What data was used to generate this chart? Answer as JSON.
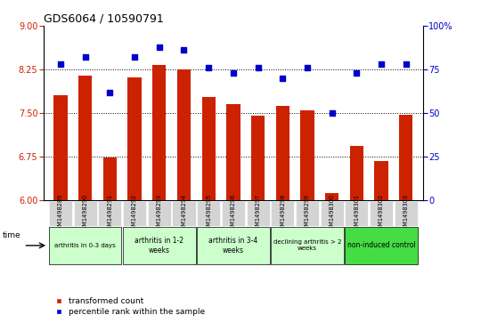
{
  "title": "GDS6064 / 10590791",
  "samples": [
    "GSM1498289",
    "GSM1498290",
    "GSM1498291",
    "GSM1498292",
    "GSM1498293",
    "GSM1498294",
    "GSM1498295",
    "GSM1498296",
    "GSM1498297",
    "GSM1498298",
    "GSM1498299",
    "GSM1498300",
    "GSM1498301",
    "GSM1498302",
    "GSM1498303"
  ],
  "bar_values": [
    7.8,
    8.15,
    6.73,
    8.12,
    8.32,
    8.25,
    7.77,
    7.65,
    7.45,
    7.62,
    7.55,
    6.12,
    6.93,
    6.68,
    7.47
  ],
  "scatter_values": [
    78,
    82,
    62,
    82,
    88,
    86,
    76,
    73,
    76,
    70,
    76,
    50,
    73,
    78,
    78
  ],
  "ylim_left": [
    6,
    9
  ],
  "ylim_right": [
    0,
    100
  ],
  "yticks_left": [
    6,
    6.75,
    7.5,
    8.25,
    9
  ],
  "yticks_right": [
    0,
    25,
    50,
    75,
    100
  ],
  "bar_color": "#cc2200",
  "scatter_color": "#0000cc",
  "groups": [
    {
      "label": "arthritis in 0-3 days",
      "start": 0,
      "end": 3,
      "color": "#ccffcc",
      "fontsize": 5.0
    },
    {
      "label": "arthritis in 1-2\nweeks",
      "start": 3,
      "end": 6,
      "color": "#ccffcc",
      "fontsize": 5.5
    },
    {
      "label": "arthritis in 3-4\nweeks",
      "start": 6,
      "end": 9,
      "color": "#ccffcc",
      "fontsize": 5.5
    },
    {
      "label": "declining arthritis > 2\nweeks",
      "start": 9,
      "end": 12,
      "color": "#ccffcc",
      "fontsize": 5.0
    },
    {
      "label": "non-induced control",
      "start": 12,
      "end": 15,
      "color": "#44dd44",
      "fontsize": 5.5
    }
  ],
  "legend_labels": [
    "transformed count",
    "percentile rank within the sample"
  ],
  "legend_colors": [
    "#cc2200",
    "#0000cc"
  ],
  "title_fontsize": 9,
  "tick_fontsize": 7,
  "label_fontsize": 7,
  "bar_width": 0.55
}
